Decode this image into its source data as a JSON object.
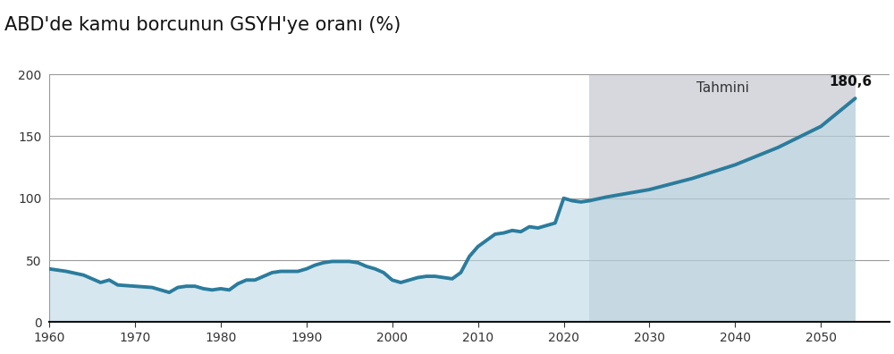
{
  "chart_data": {
    "type": "line",
    "title": "ABD'de kamu borcunun GSYH'ye oranı (%)",
    "x": [
      1960,
      1962,
      1964,
      1965,
      1966,
      1967,
      1968,
      1970,
      1972,
      1973,
      1974,
      1975,
      1976,
      1977,
      1978,
      1979,
      1980,
      1981,
      1982,
      1983,
      1984,
      1985,
      1986,
      1987,
      1988,
      1989,
      1990,
      1991,
      1992,
      1993,
      1994,
      1995,
      1996,
      1997,
      1998,
      1999,
      2000,
      2001,
      2002,
      2003,
      2004,
      2005,
      2006,
      2007,
      2008,
      2009,
      2010,
      2011,
      2012,
      2013,
      2014,
      2015,
      2016,
      2017,
      2018,
      2019,
      2020,
      2021,
      2022,
      2023,
      2025,
      2030,
      2035,
      2040,
      2045,
      2050,
      2054
    ],
    "values": [
      43,
      41,
      38,
      35,
      32,
      34,
      30,
      29,
      28,
      26,
      24,
      28,
      29,
      29,
      27,
      26,
      27,
      26,
      31,
      34,
      34,
      37,
      40,
      41,
      41,
      41,
      43,
      46,
      48,
      49,
      49,
      49,
      48,
      45,
      43,
      40,
      34,
      32,
      34,
      36,
      37,
      37,
      36,
      35,
      40,
      53,
      61,
      66,
      71,
      72,
      74,
      73,
      77,
      76,
      78,
      80,
      100,
      98,
      97,
      98,
      101,
      107,
      116,
      127,
      141,
      158,
      180.6
    ],
    "value_labels": [
      null,
      null,
      null,
      null,
      null,
      null,
      null,
      null,
      null,
      null,
      null,
      null,
      null,
      null,
      null,
      null,
      null,
      null,
      null,
      null,
      null,
      null,
      null,
      null,
      null,
      null,
      null,
      null,
      null,
      null,
      null,
      null,
      null,
      null,
      null,
      null,
      null,
      null,
      null,
      null,
      null,
      null,
      null,
      null,
      null,
      null,
      null,
      null,
      null,
      null,
      null,
      null,
      null,
      null,
      null,
      null,
      null,
      null,
      null,
      null,
      null,
      null,
      null,
      null,
      null,
      null,
      "180,6"
    ],
    "color": "#2b7c9c",
    "forecast": {
      "label": "Tahmini",
      "x": [
        2023,
        2054
      ]
    },
    "xlim": [
      1960,
      2058
    ],
    "xticks": [
      1960,
      1970,
      1980,
      1990,
      2000,
      2010,
      2020,
      2030,
      2040,
      2050
    ],
    "ylim": [
      0,
      200
    ],
    "yticks": [
      0,
      50,
      100,
      150,
      200
    ],
    "grid": true
  }
}
